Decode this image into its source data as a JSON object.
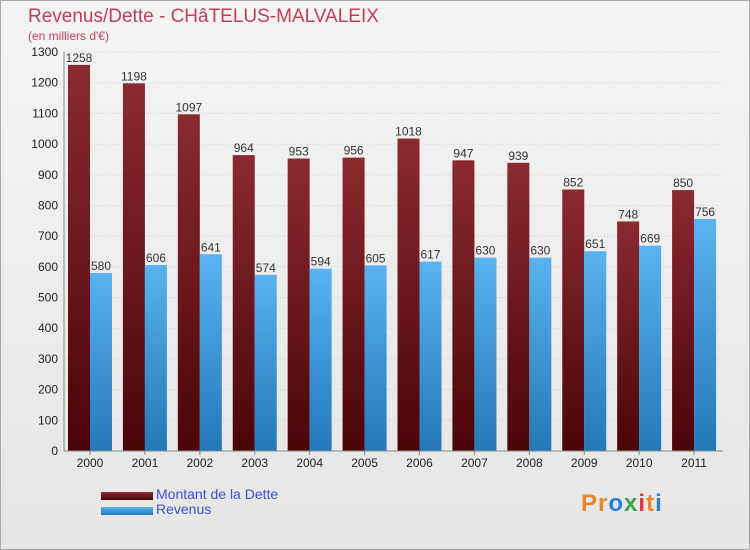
{
  "title": "Revenus/Dette - CHâTELUS-MALVALEIX",
  "subtitle": "(en milliers d'€)",
  "colors": {
    "debt": "#7a1a22",
    "revenue": "#4aa3e6",
    "axis_text": "#222222",
    "title": "#c0405a",
    "legend_text": "#3a4fd6"
  },
  "legend": [
    {
      "label": "Montant de la Dette",
      "color": "#7a1a22"
    },
    {
      "label": "Revenus",
      "color": "#4aa3e6"
    }
  ],
  "logo": {
    "text": "Proxiti",
    "letter_colors": [
      "#e8862a",
      "#e8862a",
      "#2a7fd0",
      "#3aa84a",
      "#d83a3a",
      "#e8862a",
      "#2a7fd0"
    ]
  },
  "chart_data": {
    "type": "bar",
    "title": "Revenus/Dette - CHâTELUS-MALVALEIX",
    "subtitle": "(en milliers d'€)",
    "categories": [
      "2000",
      "2001",
      "2002",
      "2003",
      "2004",
      "2005",
      "2006",
      "2007",
      "2008",
      "2009",
      "2010",
      "2011"
    ],
    "series": [
      {
        "name": "Montant de la Dette",
        "values": [
          1258,
          1198,
          1097,
          964,
          953,
          956,
          1018,
          947,
          939,
          852,
          748,
          850
        ]
      },
      {
        "name": "Revenus",
        "values": [
          580,
          606,
          641,
          574,
          594,
          605,
          617,
          630,
          630,
          651,
          669,
          756
        ]
      }
    ],
    "ylim": [
      0,
      1300
    ],
    "yticks": [
      0,
      100,
      200,
      300,
      400,
      500,
      600,
      700,
      800,
      900,
      1000,
      1100,
      1200,
      1300
    ],
    "grid": true,
    "legend_position": "bottom-left"
  }
}
